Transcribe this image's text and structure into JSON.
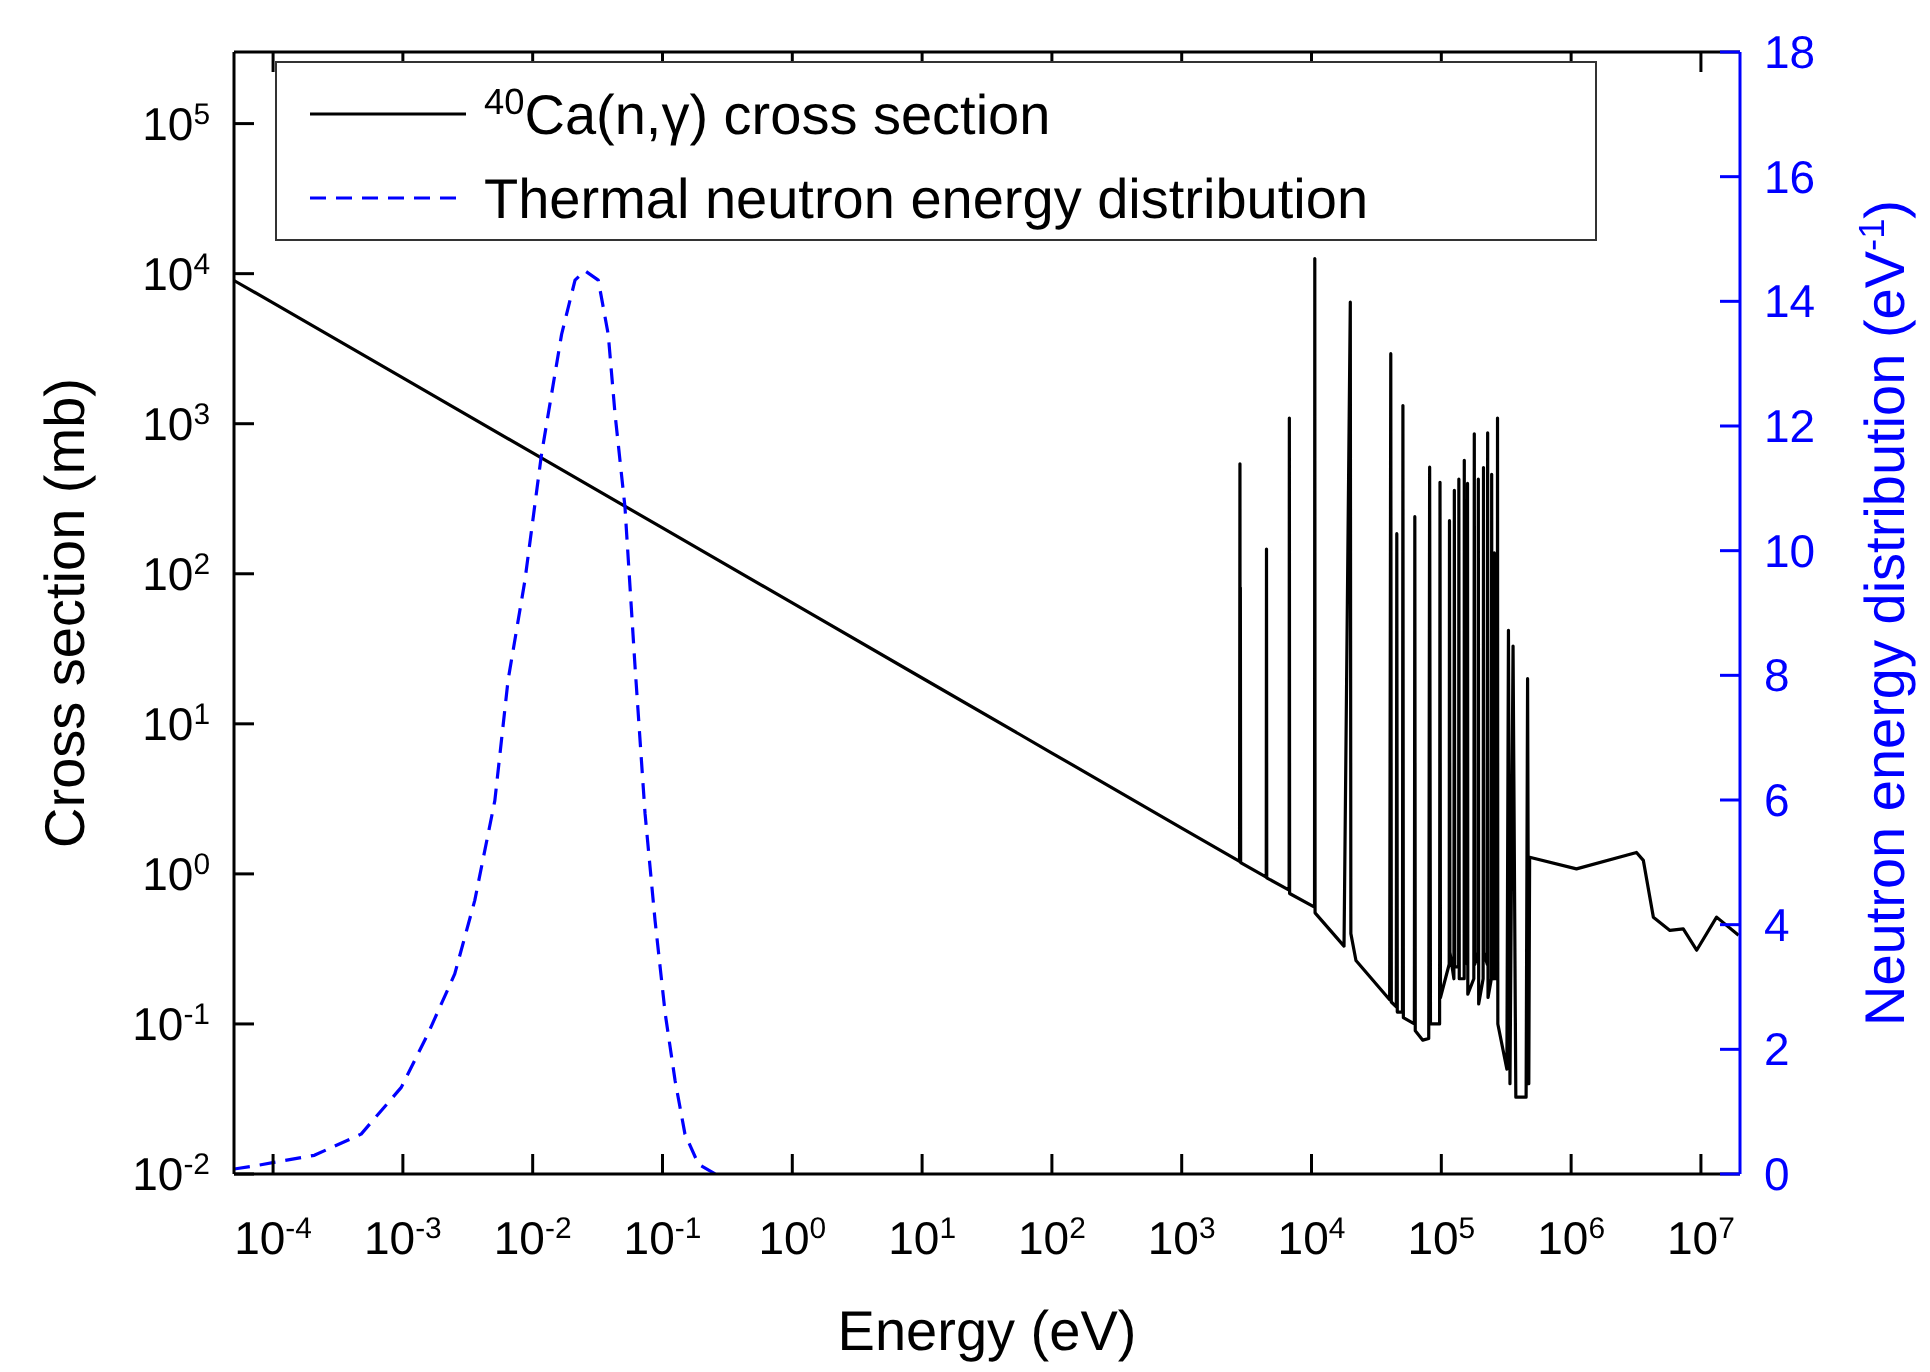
{
  "chart_data": {
    "type": "line",
    "xlabel": "Energy (eV)",
    "ylabel": "Cross section (mb)",
    "y2label": "Neutron energy distribution (eV$^{-1}$)",
    "log": "xy",
    "legend": "top left",
    "grid": false,
    "xlim": [
      5e-05,
      20000000.0
    ],
    "ylim": [
      0.01,
      300000
    ],
    "y2lim": [
      0,
      18
    ],
    "xticks": [
      {
        "value": 0.0001,
        "label": "10$^{-4}$"
      },
      {
        "value": 0.001,
        "label": "10$^{-3}$"
      },
      {
        "value": 0.01,
        "label": "10$^{-2}$"
      },
      {
        "value": 0.1,
        "label": "10$^{-1}$"
      },
      {
        "value": 1,
        "label": "10$^{0}$"
      },
      {
        "value": 10,
        "label": "10$^{1}$"
      },
      {
        "value": 100,
        "label": "10$^{2}$"
      },
      {
        "value": 1000,
        "label": "10$^{3}$"
      },
      {
        "value": 10000,
        "label": "10$^{4}$"
      },
      {
        "value": 100000,
        "label": "10$^{5}$"
      },
      {
        "value": 1000000,
        "label": "10$^{6}$"
      },
      {
        "value": 10000000,
        "label": "10$^{7}$"
      }
    ],
    "yticks": [
      {
        "value": 0.01,
        "label": "10$^{-2}$"
      },
      {
        "value": 0.1,
        "label": "10$^{-1}$"
      },
      {
        "value": 1,
        "label": "10$^{0}$"
      },
      {
        "value": 10,
        "label": "10$^{1}$"
      },
      {
        "value": 100,
        "label": "10$^{2}$"
      },
      {
        "value": 1000,
        "label": "10$^{3}$"
      },
      {
        "value": 10000,
        "label": "10$^{4}$"
      },
      {
        "value": 100000,
        "label": "10$^{5}$"
      }
    ],
    "y2ticks": [
      0,
      2,
      4,
      6,
      8,
      10,
      12,
      14,
      16,
      18
    ],
    "series": [
      {
        "name": "$^{40}$Ca(n,γ) cross section",
        "color": "#000000",
        "line_style": "solid",
        "x": [
          5e-05,
          0.0001,
          0.001,
          0.01,
          0.1,
          1,
          10,
          100,
          1000,
          2790,
          2810,
          2820,
          2830,
          2845,
          4480,
          4500,
          4520,
          6720,
          6750,
          6780,
          10550,
          10600,
          10650,
          17800,
          19900,
          20100,
          22000,
          40000,
          40800,
          41200,
          45000,
          45400,
          45800,
          50200,
          50600,
          51000,
          62000,
          62500,
          63000,
          72000,
          80000,
          81300,
          82500,
          97000,
          97700,
          98500,
          115000,
          115600,
          116500,
          125000,
          126000,
          127000,
          136000,
          136500,
          137500,
          150000,
          150300,
          151000,
          158500,
          159200,
          160000,
          178000,
          179500,
          181000,
          192000,
          192800,
          194000,
          210000,
          211300,
          212500,
          226000,
          227500,
          229000,
          243000,
          244300,
          246000,
          254000,
          255900,
          257500,
          270000,
          271000,
          272500,
          320000,
          329000,
          338000,
          357000,
          375000,
          450000,
          462000,
          472000,
          479000,
          1100000,
          3190000,
          3600000,
          4300000,
          5770000,
          7310000,
          9270000,
          13200000,
          19500000
        ],
        "values": [
          9000,
          6390,
          2021,
          639,
          202,
          63.9,
          20.2,
          6.39,
          2.02,
          1.21,
          541,
          1.2,
          81,
          1.19,
          0.95,
          146,
          0.94,
          0.78,
          1090,
          0.74,
          0.6,
          12600,
          0.55,
          0.33,
          6460,
          0.4,
          0.265,
          0.145,
          2930,
          0.14,
          0.13,
          185,
          0.12,
          0.12,
          1320,
          0.11,
          0.1,
          240,
          0.09,
          0.078,
          0.08,
          513,
          0.1,
          0.1,
          407,
          0.15,
          0.25,
          226,
          0.3,
          0.2,
          360,
          0.24,
          0.24,
          427,
          0.2,
          0.2,
          570,
          0.3,
          0.25,
          400,
          0.158,
          0.2,
          857,
          0.25,
          0.3,
          427,
          0.136,
          0.2,
          510,
          0.3,
          0.25,
          870,
          0.15,
          0.2,
          460,
          0.25,
          0.2,
          138,
          0.2,
          0.2,
          1090,
          0.1,
          0.05,
          42,
          0.04,
          33,
          0.0325,
          0.0325,
          20,
          0.04,
          1.29,
          1.08,
          1.39,
          1.23,
          0.515,
          0.42,
          0.43,
          0.31,
          0.515,
          0.39
        ]
      },
      {
        "name": "Thermal neutron energy distribution",
        "color": "#0000ff",
        "axis": "y2",
        "line_style": "dashed",
        "x": [
          5e-05,
          7.19e-05,
          0.000208,
          0.000477,
          0.000972,
          0.00156,
          0.00251,
          0.00358,
          0.00511,
          0.00646,
          0.00871,
          0.0117,
          0.0167,
          0.0212,
          0.0253,
          0.032,
          0.0382,
          0.0431,
          0.0514,
          0.0615,
          0.0734,
          0.0877,
          0.105,
          0.125,
          0.149,
          0.189,
          0.255
        ],
        "values": [
          0.08,
          0.13,
          0.3,
          0.64,
          1.39,
          2.25,
          3.21,
          4.39,
          5.99,
          7.92,
          9.52,
          11.55,
          13.47,
          14.34,
          14.49,
          14.34,
          13.47,
          12.19,
          10.7,
          8.13,
          5.78,
          4.06,
          2.57,
          1.5,
          0.64,
          0.16,
          0
        ]
      }
    ]
  }
}
